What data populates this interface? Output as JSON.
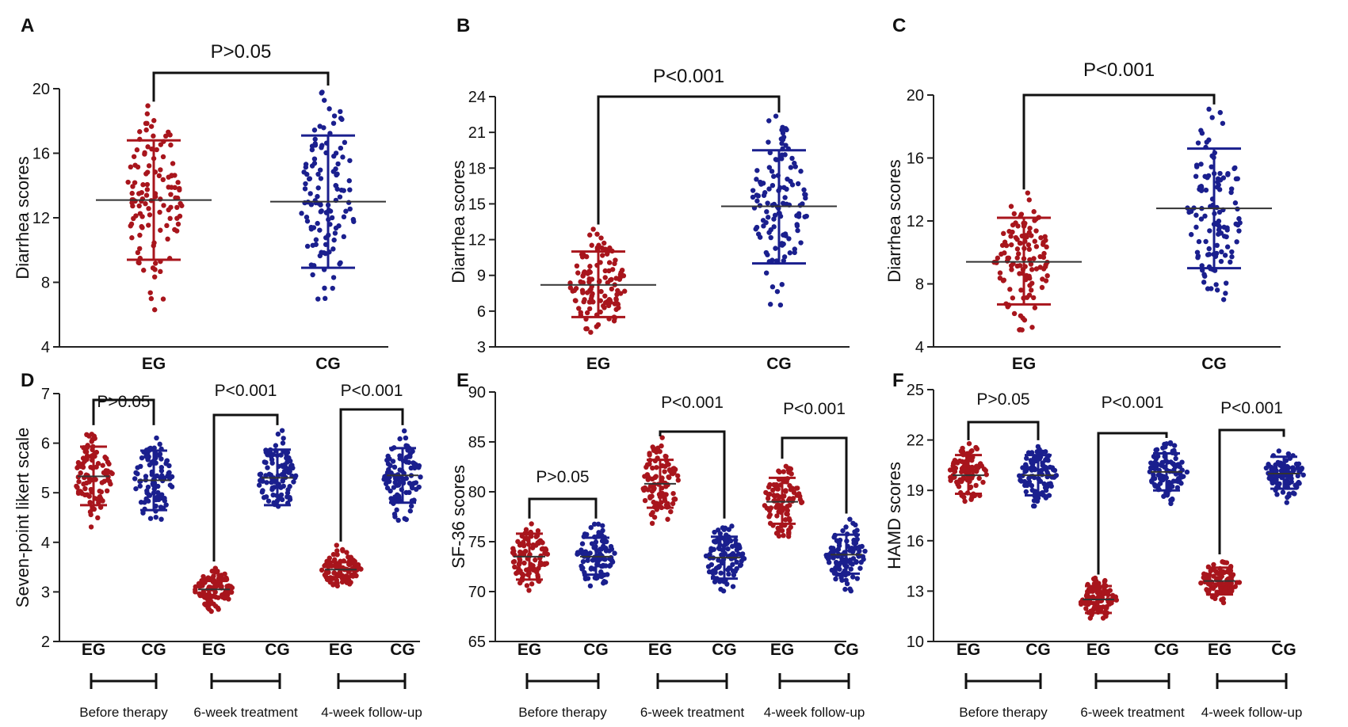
{
  "figure": {
    "description": "Six dot-plot panels comparing EG and CG groups"
  },
  "colors": {
    "EG": "#a8151c",
    "CG": "#1a1f8e",
    "axis": "#222222",
    "mean_line": "#333333"
  },
  "chart_data": [
    {
      "panel": "A",
      "type": "scatter",
      "ylabel": "Diarrhea scores",
      "ylim": [
        4,
        20
      ],
      "yticks": [
        4,
        8,
        12,
        16,
        20
      ],
      "categories": [
        "EG",
        "CG"
      ],
      "series": [
        {
          "name": "EG",
          "mean": 13.1,
          "sd_lower": 9.4,
          "sd_upper": 16.8,
          "min": 6,
          "max": 19,
          "n": 120
        },
        {
          "name": "CG",
          "mean": 13.0,
          "sd_lower": 8.9,
          "sd_upper": 17.1,
          "min": 6.4,
          "max": 20,
          "n": 120
        }
      ],
      "comparisons": [
        {
          "pair": [
            0,
            1
          ],
          "label": "P>0.05"
        }
      ],
      "group_labels": []
    },
    {
      "panel": "B",
      "type": "scatter",
      "ylabel": "Diarrhea scores",
      "ylim": [
        3,
        24
      ],
      "yticks": [
        3,
        6,
        9,
        12,
        15,
        18,
        21,
        24
      ],
      "categories": [
        "EG",
        "CG"
      ],
      "series": [
        {
          "name": "EG",
          "mean": 8.2,
          "sd_lower": 5.5,
          "sd_upper": 11.0,
          "min": 4.0,
          "max": 13.0,
          "n": 120
        },
        {
          "name": "CG",
          "mean": 14.8,
          "sd_lower": 10.0,
          "sd_upper": 19.5,
          "min": 6.3,
          "max": 22.4,
          "n": 120
        }
      ],
      "comparisons": [
        {
          "pair": [
            0,
            1
          ],
          "label": "P<0.001"
        }
      ],
      "group_labels": []
    },
    {
      "panel": "C",
      "type": "scatter",
      "ylabel": "Diarrhea scores",
      "ylim": [
        4,
        20
      ],
      "yticks": [
        4,
        8,
        12,
        16,
        20
      ],
      "categories": [
        "EG",
        "CG"
      ],
      "series": [
        {
          "name": "EG",
          "mean": 9.4,
          "sd_lower": 6.7,
          "sd_upper": 12.2,
          "min": 4.6,
          "max": 13.8,
          "n": 120
        },
        {
          "name": "CG",
          "mean": 12.8,
          "sd_lower": 9.0,
          "sd_upper": 16.6,
          "min": 6.8,
          "max": 19.2,
          "n": 120
        }
      ],
      "comparisons": [
        {
          "pair": [
            0,
            1
          ],
          "label": "P<0.001"
        }
      ],
      "group_labels": []
    },
    {
      "panel": "D",
      "type": "scatter",
      "ylabel": "Seven-point likert scale",
      "ylim": [
        2,
        7
      ],
      "yticks": [
        2,
        3,
        4,
        5,
        6,
        7
      ],
      "categories": [
        "EG",
        "CG",
        "EG",
        "CG",
        "EG",
        "CG"
      ],
      "series": [
        {
          "name": "EG",
          "mean": 5.33,
          "sd_lower": 4.75,
          "sd_upper": 5.93,
          "min": 4.3,
          "max": 6.3,
          "n": 100
        },
        {
          "name": "CG",
          "mean": 5.25,
          "sd_lower": 4.65,
          "sd_upper": 5.85,
          "min": 4.35,
          "max": 6.3,
          "n": 100
        },
        {
          "name": "EG",
          "mean": 3.05,
          "sd_lower": 2.9,
          "sd_upper": 3.22,
          "min": 2.6,
          "max": 3.55,
          "n": 100
        },
        {
          "name": "CG",
          "mean": 5.3,
          "sd_lower": 4.75,
          "sd_upper": 5.87,
          "min": 4.4,
          "max": 6.3,
          "n": 100
        },
        {
          "name": "EG",
          "mean": 3.45,
          "sd_lower": 3.3,
          "sd_upper": 3.6,
          "min": 3.05,
          "max": 3.95,
          "n": 100
        },
        {
          "name": "CG",
          "mean": 5.35,
          "sd_lower": 4.8,
          "sd_upper": 5.9,
          "min": 4.35,
          "max": 6.3,
          "n": 100
        }
      ],
      "comparisons": [
        {
          "pair": [
            0,
            1
          ],
          "label": "P>0.05"
        },
        {
          "pair": [
            2,
            3
          ],
          "label": "P<0.001"
        },
        {
          "pair": [
            4,
            5
          ],
          "label": "P<0.001"
        }
      ],
      "group_labels": [
        "Before therapy",
        "6-week treatment",
        "4-week follow-up"
      ]
    },
    {
      "panel": "E",
      "type": "scatter",
      "ylabel": "SF-36 scores",
      "ylim": [
        65,
        90
      ],
      "yticks": [
        65,
        70,
        75,
        80,
        85,
        90
      ],
      "categories": [
        "EG",
        "CG",
        "EG",
        "CG",
        "EG",
        "CG"
      ],
      "series": [
        {
          "name": "EG",
          "mean": 73.5,
          "sd_lower": 71.2,
          "sd_upper": 75.8,
          "min": 70.0,
          "max": 77.0,
          "n": 100
        },
        {
          "name": "CG",
          "mean": 73.5,
          "sd_lower": 71.7,
          "sd_upper": 75.4,
          "min": 70.0,
          "max": 77.0,
          "n": 100
        },
        {
          "name": "EG",
          "mean": 80.8,
          "sd_lower": 78.4,
          "sd_upper": 83.2,
          "min": 76.5,
          "max": 85.5,
          "n": 100
        },
        {
          "name": "CG",
          "mean": 73.4,
          "sd_lower": 71.3,
          "sd_upper": 75.5,
          "min": 69.5,
          "max": 77.0,
          "n": 100
        },
        {
          "name": "EG",
          "mean": 79.0,
          "sd_lower": 76.8,
          "sd_upper": 81.4,
          "min": 75.0,
          "max": 83.0,
          "n": 100
        },
        {
          "name": "CG",
          "mean": 73.7,
          "sd_lower": 71.8,
          "sd_upper": 75.7,
          "min": 70.0,
          "max": 77.5,
          "n": 100
        }
      ],
      "comparisons": [
        {
          "pair": [
            0,
            1
          ],
          "label": "P>0.05"
        },
        {
          "pair": [
            2,
            3
          ],
          "label": "P<0.001"
        },
        {
          "pair": [
            4,
            5
          ],
          "label": "P<0.001"
        }
      ],
      "group_labels": [
        "Before therapy",
        "6-week treatment",
        "4-week follow-up"
      ]
    },
    {
      "panel": "F",
      "type": "scatter",
      "ylabel": "HAMD scores",
      "ylim": [
        10,
        25
      ],
      "yticks": [
        10,
        13,
        16,
        19,
        22,
        25
      ],
      "categories": [
        "EG",
        "CG",
        "EG",
        "CG",
        "EG",
        "CG"
      ],
      "series": [
        {
          "name": "EG",
          "mean": 19.9,
          "sd_lower": 18.8,
          "sd_upper": 21.1,
          "min": 18.0,
          "max": 21.8,
          "n": 100
        },
        {
          "name": "CG",
          "mean": 19.9,
          "sd_lower": 18.7,
          "sd_upper": 21.1,
          "min": 18.0,
          "max": 21.8,
          "n": 100
        },
        {
          "name": "EG",
          "mean": 12.5,
          "sd_lower": 11.7,
          "sd_upper": 13.3,
          "min": 11.2,
          "max": 13.8,
          "n": 100
        },
        {
          "name": "CG",
          "mean": 20.1,
          "sd_lower": 19.0,
          "sd_upper": 21.2,
          "min": 18.2,
          "max": 22.0,
          "n": 100
        },
        {
          "name": "EG",
          "mean": 13.6,
          "sd_lower": 12.8,
          "sd_upper": 14.4,
          "min": 12.2,
          "max": 15.0,
          "n": 100
        },
        {
          "name": "CG",
          "mean": 20.0,
          "sd_lower": 19.1,
          "sd_upper": 21.0,
          "min": 18.2,
          "max": 22.0,
          "n": 100
        }
      ],
      "comparisons": [
        {
          "pair": [
            0,
            1
          ],
          "label": "P>0.05"
        },
        {
          "pair": [
            2,
            3
          ],
          "label": "P<0.001"
        },
        {
          "pair": [
            4,
            5
          ],
          "label": "P<0.001"
        }
      ],
      "group_labels": [
        "Before therapy",
        "6-week treatment",
        "4-week follow-up"
      ]
    }
  ]
}
